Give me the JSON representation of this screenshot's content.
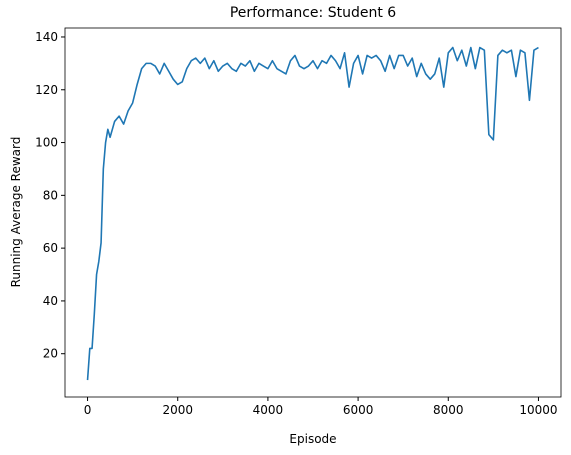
{
  "chart_data": {
    "type": "line",
    "title": "Performance: Student 6",
    "x_label": "Episode",
    "y_label": "Running Average Reward",
    "x": [
      0,
      50,
      100,
      150,
      200,
      250,
      300,
      350,
      400,
      450,
      500,
      600,
      700,
      800,
      900,
      1000,
      1100,
      1200,
      1300,
      1400,
      1500,
      1600,
      1700,
      1800,
      1900,
      2000,
      2100,
      2200,
      2300,
      2400,
      2500,
      2600,
      2700,
      2800,
      2900,
      3000,
      3100,
      3200,
      3300,
      3400,
      3500,
      3600,
      3700,
      3800,
      3900,
      4000,
      4100,
      4200,
      4300,
      4400,
      4500,
      4600,
      4700,
      4800,
      4900,
      5000,
      5100,
      5200,
      5300,
      5400,
      5500,
      5600,
      5700,
      5800,
      5900,
      6000,
      6100,
      6200,
      6300,
      6400,
      6500,
      6600,
      6700,
      6800,
      6900,
      7000,
      7100,
      7200,
      7300,
      7400,
      7500,
      7600,
      7700,
      7800,
      7900,
      8000,
      8100,
      8200,
      8300,
      8400,
      8500,
      8600,
      8700,
      8800,
      8900,
      9000,
      9100,
      9200,
      9300,
      9400,
      9500,
      9600,
      9700,
      9800,
      9900,
      10000
    ],
    "series": [
      {
        "name": "Running Average Reward",
        "color": "#1f77b4",
        "values": [
          10,
          22,
          22,
          35,
          50,
          55,
          62,
          90,
          100,
          105,
          102,
          108,
          110,
          107,
          112,
          115,
          122,
          128,
          130,
          130,
          129,
          126,
          130,
          127,
          124,
          122,
          123,
          128,
          131,
          132,
          130,
          132,
          128,
          131,
          127,
          129,
          130,
          128,
          127,
          130,
          129,
          131,
          127,
          130,
          129,
          128,
          131,
          128,
          127,
          126,
          131,
          133,
          129,
          128,
          129,
          131,
          128,
          131,
          130,
          133,
          131,
          128,
          134,
          121,
          130,
          133,
          126,
          133,
          132,
          133,
          131,
          127,
          133,
          128,
          133,
          133,
          129,
          132,
          125,
          130,
          126,
          124,
          126,
          132,
          121,
          134,
          136,
          131,
          135,
          129,
          136,
          128,
          136,
          135,
          103,
          101,
          133,
          135,
          134,
          135,
          125,
          135,
          134,
          116,
          135,
          136
        ]
      }
    ],
    "xlim": [
      -500,
      10500
    ],
    "ylim": [
      3.6,
      143.4
    ],
    "xticks": [
      0,
      2000,
      4000,
      6000,
      8000,
      10000
    ],
    "yticks": [
      20,
      40,
      60,
      80,
      100,
      120,
      140
    ]
  }
}
